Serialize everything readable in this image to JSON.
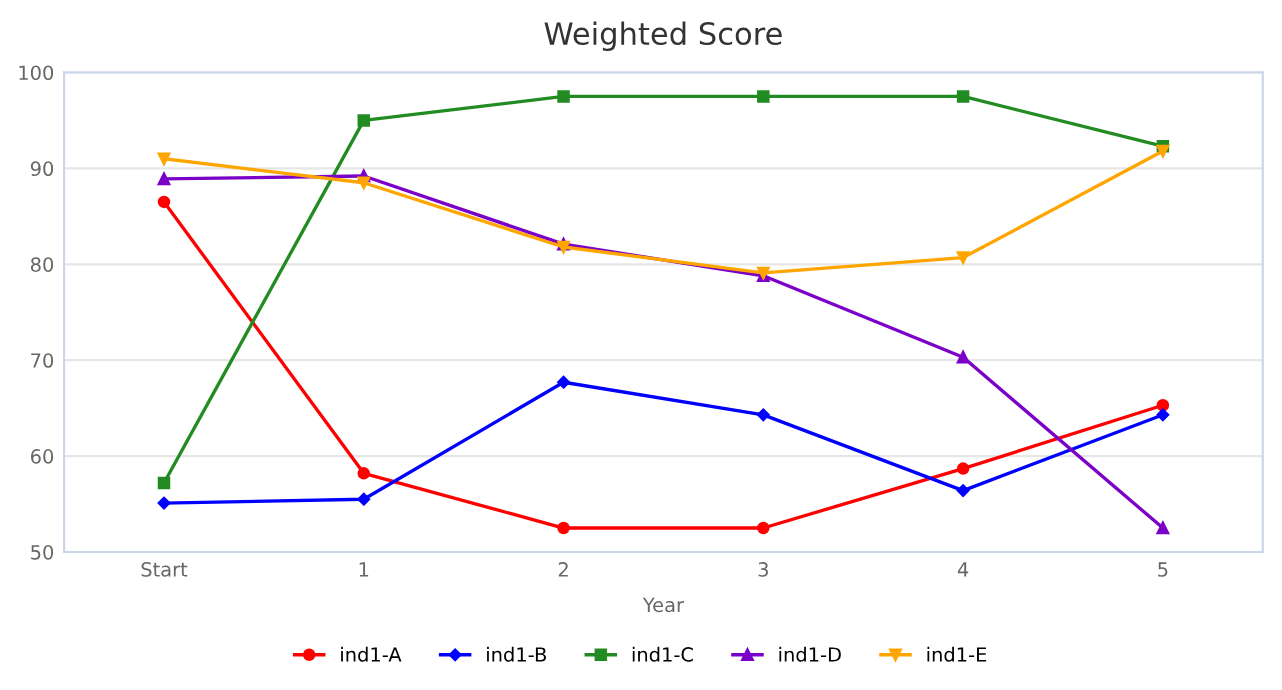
{
  "chart_data": {
    "type": "line",
    "title": "Weighted Score",
    "xlabel": "Year",
    "categories": [
      "Start",
      "1",
      "2",
      "3",
      "4",
      "5"
    ],
    "ylim": [
      50,
      100
    ],
    "yticks": [
      50,
      60,
      70,
      80,
      90,
      100
    ],
    "grid": "y",
    "legend": "bottom",
    "line_style": "solid",
    "series": [
      {
        "name": "ind1-A",
        "color": "#ff0000",
        "marker": "circle",
        "values": [
          86.5,
          58.2,
          52.5,
          52.5,
          58.7,
          65.3
        ]
      },
      {
        "name": "ind1-B",
        "color": "#0000ff",
        "marker": "diamond",
        "values": [
          55.1,
          55.5,
          67.7,
          64.3,
          56.4,
          64.3
        ]
      },
      {
        "name": "ind1-C",
        "color": "#228b22",
        "marker": "square",
        "values": [
          57.2,
          95,
          97.5,
          97.5,
          97.5,
          92.3
        ]
      },
      {
        "name": "ind1-D",
        "color": "#7b00c8",
        "marker": "triangle",
        "values": [
          88.9,
          89.2,
          82.1,
          78.8,
          70.3,
          52.5
        ]
      },
      {
        "name": "ind1-E",
        "color": "#ffa500",
        "marker": "triangle-down",
        "values": [
          91,
          88.5,
          81.8,
          79.1,
          80.7,
          91.8
        ]
      }
    ]
  }
}
